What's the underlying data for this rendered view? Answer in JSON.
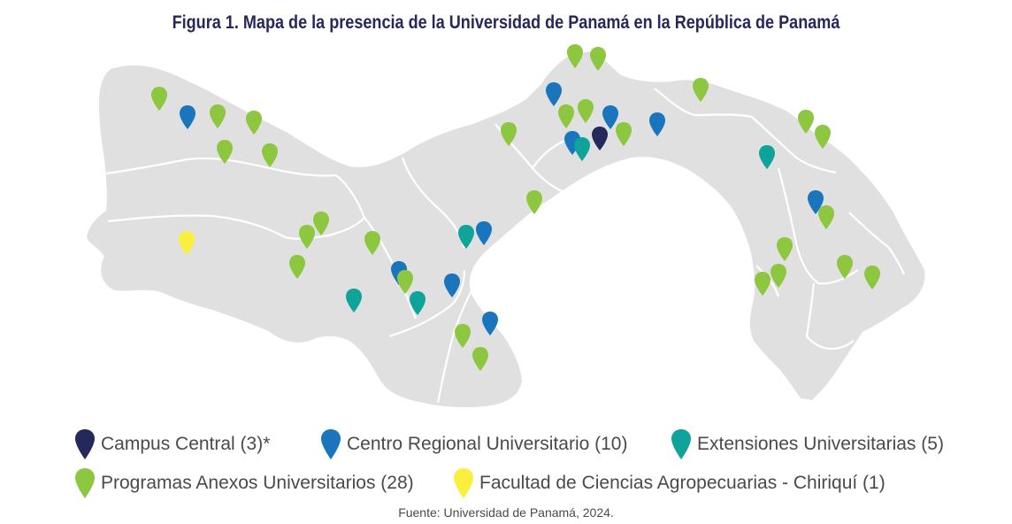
{
  "title": "Figura 1. Mapa de la presencia de la Universidad de Panamá en la República de Panamá",
  "source": "Fuente: Universidad de Panamá, 2024.",
  "colors": {
    "land": "#e0e0e0",
    "border": "#ffffff",
    "campus_central": "#24285a",
    "centro_regional": "#1b75bc",
    "extensiones": "#0fa39a",
    "programas_anexos": "#8dc63f",
    "facultad": "#f9ef3c"
  },
  "legend": [
    {
      "key": "campus_central",
      "label": "Campus Central (3)*"
    },
    {
      "key": "centro_regional",
      "label": "Centro Regional Universitario (10)"
    },
    {
      "key": "extensiones",
      "label": "Extensiones Universitarias (5)"
    },
    {
      "key": "programas_anexos",
      "label": "Programas Anexos Universitarios  (28)"
    },
    {
      "key": "facultad",
      "label": "Facultad de Ciencias Agropecuarias - Chiriquí  (1)"
    }
  ]
}
